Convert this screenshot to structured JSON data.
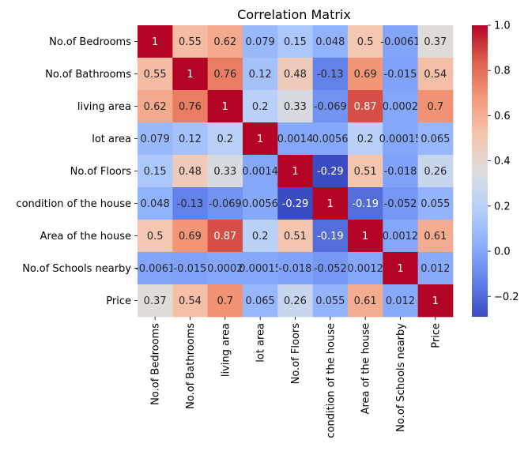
{
  "chart_data": {
    "type": "heatmap",
    "title": "Correlation Matrix",
    "row_labels": [
      "No.of Bedrooms",
      "No.of Bathrooms",
      "living area",
      "lot area",
      "No.of Floors",
      "condition of the house",
      "Area of the house",
      "No.of Schools nearby",
      "Price"
    ],
    "col_labels": [
      "No.of Bedrooms",
      "No.of Bathrooms",
      "living area",
      "lot area",
      "No.of Floors",
      "condition of the house",
      "Area of the house",
      "No.of Schools nearby",
      "Price"
    ],
    "values": [
      [
        1,
        0.55,
        0.62,
        0.079,
        0.15,
        0.048,
        0.5,
        -0.0061,
        0.37
      ],
      [
        0.55,
        1,
        0.76,
        0.12,
        0.48,
        -0.13,
        0.69,
        -0.015,
        0.54
      ],
      [
        0.62,
        0.76,
        1,
        0.2,
        0.33,
        -0.069,
        0.87,
        0.0002,
        0.7
      ],
      [
        0.079,
        0.12,
        0.2,
        1,
        0.0014,
        0.0056,
        0.2,
        0.00015,
        0.065
      ],
      [
        0.15,
        0.48,
        0.33,
        0.0014,
        1,
        -0.29,
        0.51,
        -0.018,
        0.26
      ],
      [
        0.048,
        -0.13,
        -0.069,
        0.0056,
        -0.29,
        1,
        -0.19,
        -0.052,
        0.055
      ],
      [
        0.5,
        0.69,
        0.87,
        0.2,
        0.51,
        -0.19,
        1,
        0.0012,
        0.61
      ],
      [
        -0.0061,
        -0.015,
        0.0002,
        0.00015,
        -0.018,
        -0.052,
        0.0012,
        1,
        0.012
      ],
      [
        0.37,
        0.54,
        0.7,
        0.065,
        0.26,
        0.055,
        0.61,
        0.012,
        1
      ]
    ],
    "cell_labels": [
      [
        "1",
        "0.55",
        "0.62",
        "0.079",
        "0.15",
        "0.048",
        "0.5",
        "-0.0061",
        "0.37"
      ],
      [
        "0.55",
        "1",
        "0.76",
        "0.12",
        "0.48",
        "-0.13",
        "0.69",
        "-0.015",
        "0.54"
      ],
      [
        "0.62",
        "0.76",
        "1",
        "0.2",
        "0.33",
        "-0.069",
        "0.87",
        "0.0002",
        "0.7"
      ],
      [
        "0.079",
        "0.12",
        "0.2",
        "1",
        "0.0014",
        "0.0056",
        "0.2",
        "0.00015",
        "0.065"
      ],
      [
        "0.15",
        "0.48",
        "0.33",
        "0.0014",
        "1",
        "-0.29",
        "0.51",
        "-0.018",
        "0.26"
      ],
      [
        "0.048",
        "-0.13",
        "-0.069",
        "0.0056",
        "-0.29",
        "1",
        "-0.19",
        "-0.052",
        "0.055"
      ],
      [
        "0.5",
        "0.69",
        "0.87",
        "0.2",
        "0.51",
        "-0.19",
        "1",
        "0.0012",
        "0.61"
      ],
      [
        "-0.0061",
        "-0.015",
        "0.0002",
        "0.00015",
        "-0.018",
        "-0.052",
        "0.0012",
        "1",
        "0.012"
      ],
      [
        "0.37",
        "0.54",
        "0.7",
        "0.065",
        "0.26",
        "0.055",
        "0.61",
        "0.012",
        "1"
      ]
    ],
    "colormap": "coolwarm",
    "colorbar": {
      "range": [
        -0.29,
        1
      ],
      "ticks": [
        -0.2,
        0,
        0.2,
        0.4,
        0.6,
        0.8,
        1
      ],
      "tick_labels": [
        "−0.2",
        "0.0",
        "0.2",
        "0.4",
        "0.6",
        "0.8",
        "1.0"
      ]
    },
    "grid": false,
    "legend": "none"
  }
}
